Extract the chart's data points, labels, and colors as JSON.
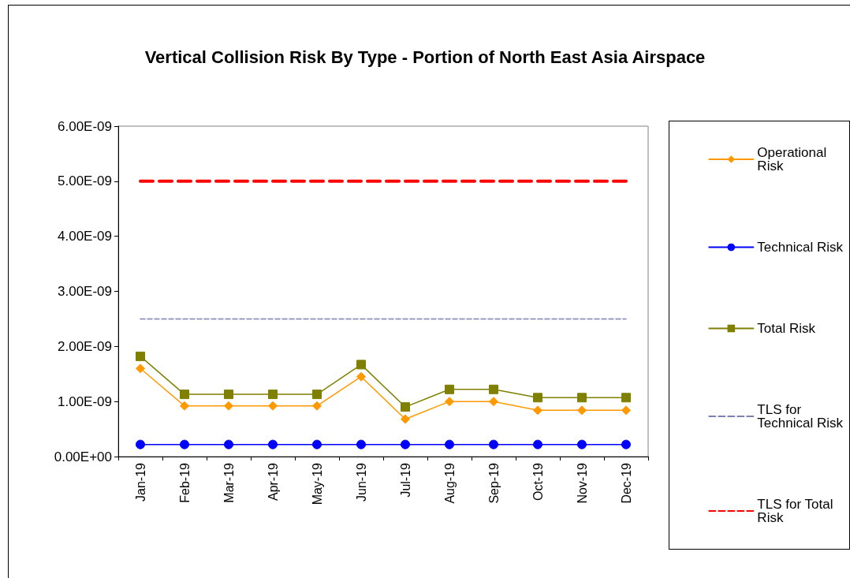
{
  "chart_data": {
    "type": "line",
    "title": "Vertical Collision Risk By Type - Portion of North East Asia Airspace",
    "categories": [
      "Jan-19",
      "Feb-19",
      "Mar-19",
      "Apr-19",
      "May-19",
      "Jun-19",
      "Jul-19",
      "Aug-19",
      "Sep-19",
      "Oct-19",
      "Nov-19",
      "Dec-19"
    ],
    "series": [
      {
        "name": "Operational Risk",
        "color": "#ff9900",
        "marker": "diamond",
        "line_style": "solid",
        "values": [
          1.6e-09,
          9.2e-10,
          9.2e-10,
          9.2e-10,
          9.2e-10,
          1.45e-09,
          6.8e-10,
          1e-09,
          1e-09,
          8.4e-10,
          8.4e-10,
          8.4e-10
        ]
      },
      {
        "name": "Technical Risk",
        "color": "#0000ff",
        "marker": "circle",
        "line_style": "solid",
        "values": [
          2.2e-10,
          2.2e-10,
          2.2e-10,
          2.2e-10,
          2.2e-10,
          2.2e-10,
          2.2e-10,
          2.2e-10,
          2.2e-10,
          2.2e-10,
          2.2e-10,
          2.2e-10
        ]
      },
      {
        "name": "Total Risk",
        "color": "#808000",
        "marker": "square",
        "line_style": "solid",
        "values": [
          1.82e-09,
          1.13e-09,
          1.13e-09,
          1.13e-09,
          1.13e-09,
          1.67e-09,
          9e-10,
          1.22e-09,
          1.22e-09,
          1.07e-09,
          1.07e-09,
          1.07e-09
        ]
      },
      {
        "name": "TLS for Technical Risk",
        "color": "#7f7fb0",
        "marker": "none",
        "line_style": "dashed",
        "values": [
          2.5e-09,
          2.5e-09,
          2.5e-09,
          2.5e-09,
          2.5e-09,
          2.5e-09,
          2.5e-09,
          2.5e-09,
          2.5e-09,
          2.5e-09,
          2.5e-09,
          2.5e-09
        ]
      },
      {
        "name": "TLS for Total Risk",
        "color": "#ff0000",
        "marker": "none",
        "line_style": "dashed",
        "values": [
          5e-09,
          5e-09,
          5e-09,
          5e-09,
          5e-09,
          5e-09,
          5e-09,
          5e-09,
          5e-09,
          5e-09,
          5e-09,
          5e-09
        ]
      }
    ],
    "ylim": [
      0,
      6e-09
    ],
    "yticks": [
      {
        "value": 0,
        "label": "0.00E+00"
      },
      {
        "value": 1e-09,
        "label": "1.00E-09"
      },
      {
        "value": 2e-09,
        "label": "2.00E-09"
      },
      {
        "value": 3e-09,
        "label": "3.00E-09"
      },
      {
        "value": 4e-09,
        "label": "4.00E-09"
      },
      {
        "value": 5e-09,
        "label": "5.00E-09"
      },
      {
        "value": 6e-09,
        "label": "6.00E-09"
      }
    ],
    "grid": false,
    "legend": "right"
  }
}
